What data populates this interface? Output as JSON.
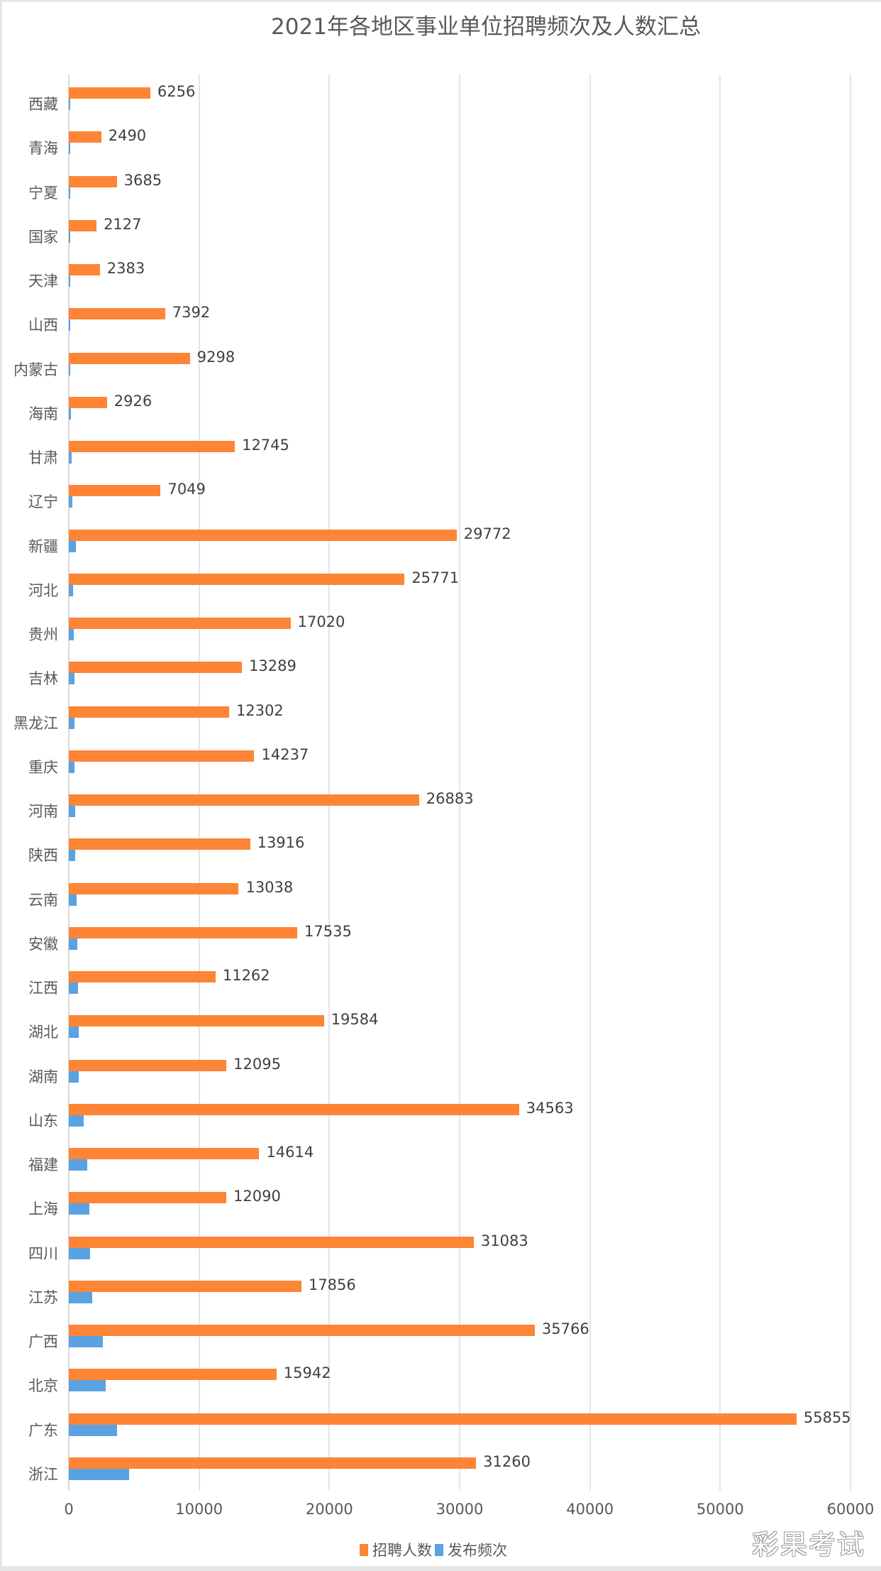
{
  "chart_data": {
    "type": "bar",
    "orientation": "horizontal",
    "title": "2021年各地区事业单位招聘频次及人数汇总",
    "xlabel": "",
    "ylabel": "",
    "xlim": [
      0,
      60000
    ],
    "x_ticks": [
      "0",
      "10000",
      "20000",
      "30000",
      "40000",
      "50000",
      "60000"
    ],
    "grid": true,
    "legend_position": "bottom",
    "categories": [
      "西藏",
      "青海",
      "宁夏",
      "国家",
      "天津",
      "山西",
      "内蒙古",
      "海南",
      "甘肃",
      "辽宁",
      "新疆",
      "河北",
      "贵州",
      "吉林",
      "黑龙江",
      "重庆",
      "河南",
      "陕西",
      "云南",
      "安徽",
      "江西",
      "湖北",
      "湖南",
      "山东",
      "福建",
      "上海",
      "四川",
      "江苏",
      "广西",
      "北京",
      "广东",
      "浙江"
    ],
    "series": [
      {
        "name": "招聘人数",
        "color": "#fd8535",
        "values": [
          6256,
          2490,
          3685,
          2127,
          2383,
          7392,
          9298,
          2926,
          12745,
          7049,
          29772,
          25771,
          17020,
          13289,
          12302,
          14237,
          26883,
          13916,
          13038,
          17535,
          11262,
          19584,
          12095,
          34563,
          14614,
          12090,
          31083,
          17856,
          35766,
          15942,
          55855,
          31260
        ],
        "data_labels": true
      },
      {
        "name": "发布频次",
        "color": "#5ba2e2",
        "values": [
          60,
          70,
          80,
          90,
          100,
          120,
          130,
          150,
          220,
          270,
          550,
          330,
          400,
          420,
          450,
          460,
          500,
          510,
          600,
          660,
          710,
          760,
          770,
          1150,
          1420,
          1580,
          1640,
          1800,
          2620,
          2840,
          3720,
          4650
        ],
        "data_labels": false
      }
    ]
  },
  "legend": {
    "items": [
      {
        "label": "招聘人数",
        "color": "#fd8535"
      },
      {
        "label": "发布频次",
        "color": "#5ba2e2"
      }
    ]
  },
  "watermark": "彩果考试"
}
